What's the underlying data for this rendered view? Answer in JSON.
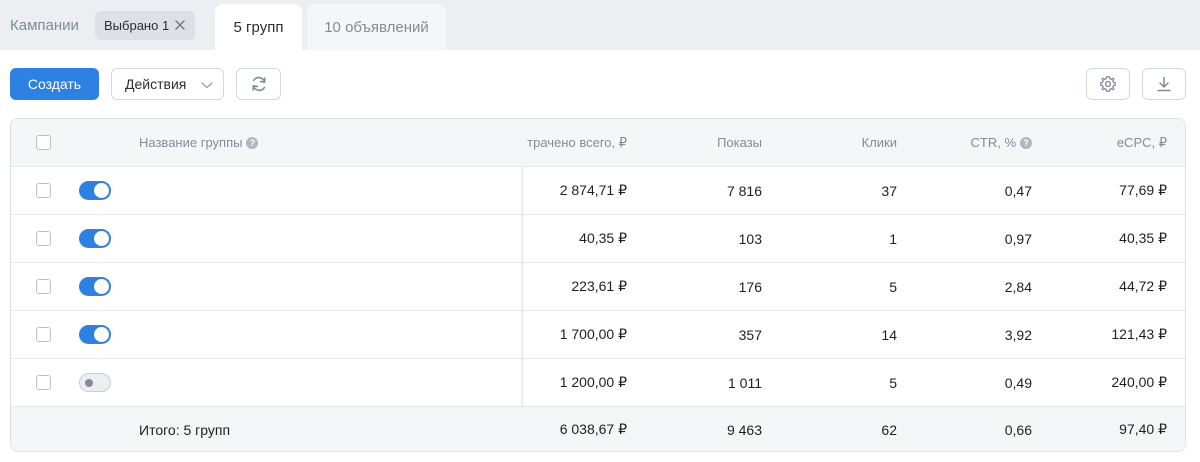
{
  "tabs": {
    "campaigns": "Кампании",
    "selected_chip": "Выбрано 1",
    "groups": "5 групп",
    "ads": "10 объявлений"
  },
  "toolbar": {
    "create": "Создать",
    "actions": "Действия"
  },
  "icons": {
    "close": "close-icon",
    "chevron": "chevron-down-icon",
    "refresh": "refresh-icon",
    "settings": "gear-icon",
    "download": "download-icon",
    "help": "help-icon"
  },
  "colors": {
    "accent": "#2d81e0",
    "tabbar_bg": "#eceef1",
    "muted_text": "#818c99"
  },
  "table": {
    "headers": {
      "name": "Название группы",
      "help": "?",
      "spent": "трачено всего, ₽",
      "shows": "Показы",
      "clicks": "Клики",
      "ctr": "CTR, %",
      "ecpc": "eCPC, ₽"
    },
    "rows": [
      {
        "active": true,
        "spent": "2 874,71 ₽",
        "shows": "7 816",
        "clicks": "37",
        "ctr": "0,47",
        "ecpc": "77,69 ₽"
      },
      {
        "active": true,
        "spent": "40,35 ₽",
        "shows": "103",
        "clicks": "1",
        "ctr": "0,97",
        "ecpc": "40,35 ₽"
      },
      {
        "active": true,
        "spent": "223,61 ₽",
        "shows": "176",
        "clicks": "5",
        "ctr": "2,84",
        "ecpc": "44,72 ₽"
      },
      {
        "active": true,
        "spent": "1 700,00 ₽",
        "shows": "357",
        "clicks": "14",
        "ctr": "3,92",
        "ecpc": "121,43 ₽"
      },
      {
        "active": false,
        "spent": "1 200,00 ₽",
        "shows": "1 011",
        "clicks": "5",
        "ctr": "0,49",
        "ecpc": "240,00 ₽"
      }
    ],
    "total": {
      "label": "Итого: 5 групп",
      "spent": "6 038,67 ₽",
      "shows": "9 463",
      "clicks": "62",
      "ctr": "0,66",
      "ecpc": "97,40 ₽"
    }
  }
}
